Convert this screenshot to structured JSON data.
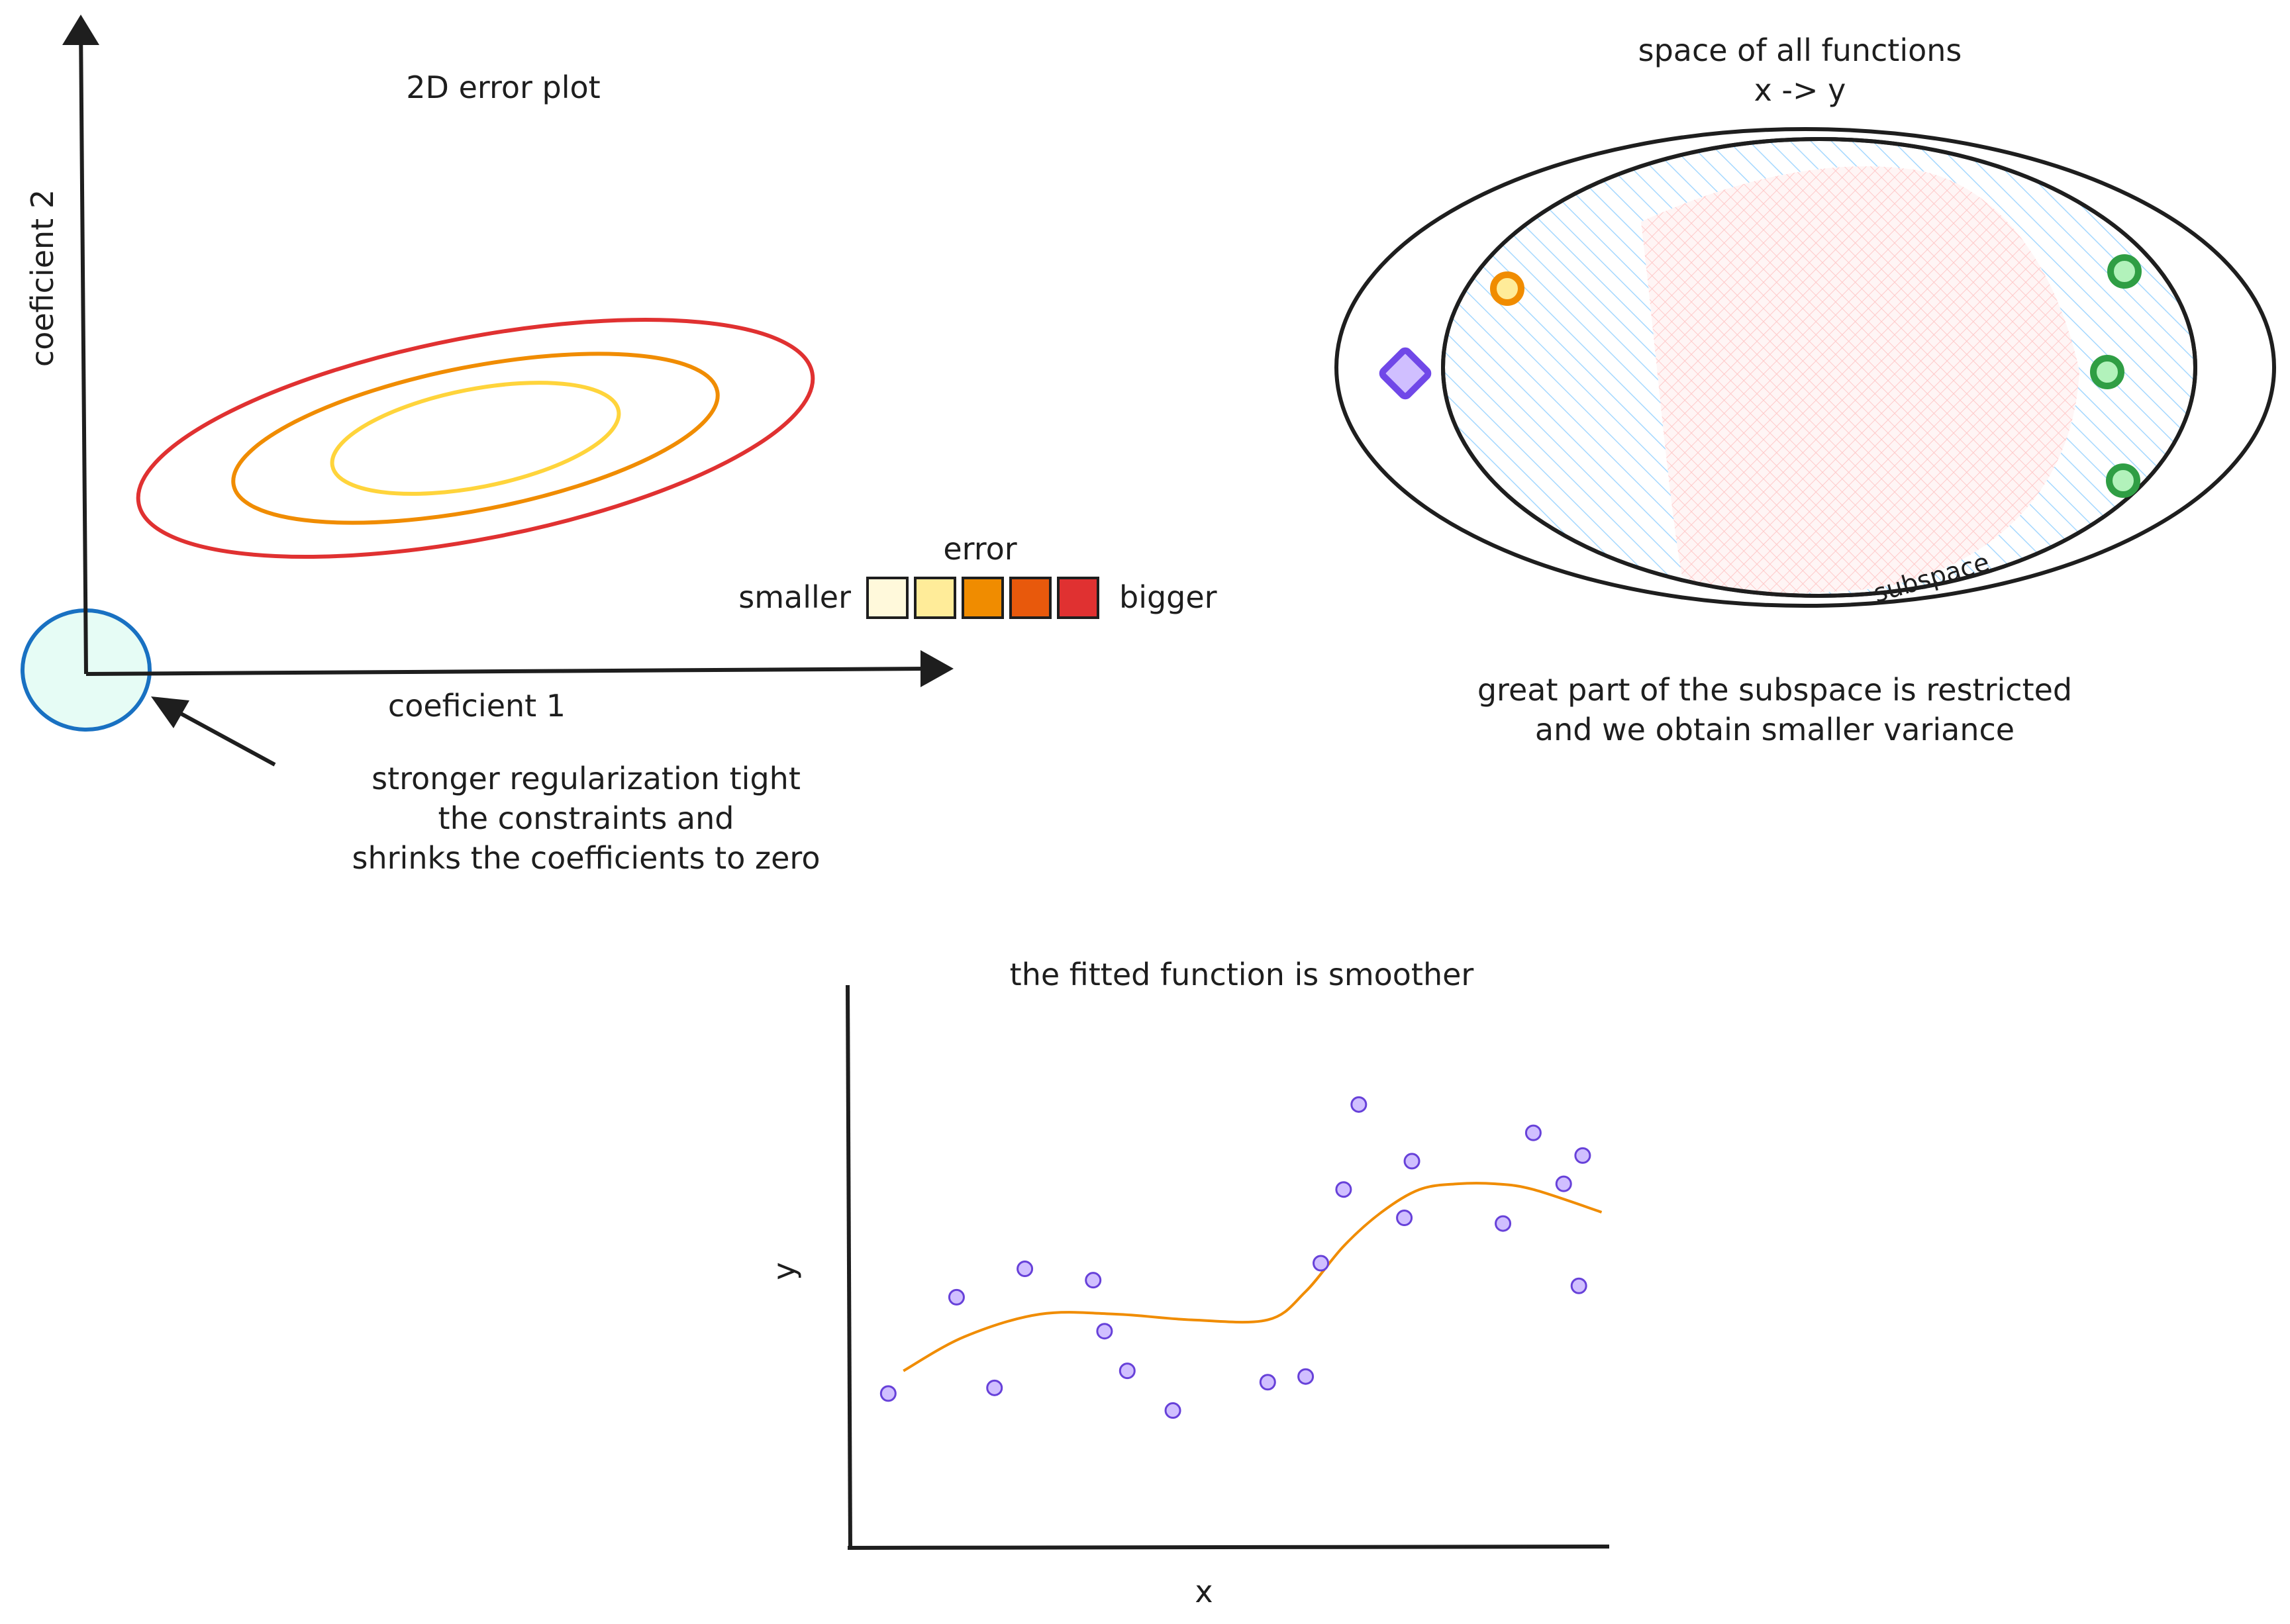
{
  "error_plot": {
    "title": "2D error plot",
    "x_axis_label": "coeficient 1",
    "y_axis_label": "coeficient 2",
    "legend": {
      "title": "error",
      "low_label": "smaller",
      "high_label": "bigger",
      "colors": [
        "#fff9db",
        "#ffec99",
        "#f08c00",
        "#e8590c",
        "#e03131"
      ]
    },
    "contour_colors": [
      "#ffd43b",
      "#f08c00",
      "#e03131"
    ],
    "constraint_region_color": "#e6fcf5",
    "constraint_region_stroke": "#1971c2",
    "annotation_lines": [
      "stronger regularization tight",
      "the constraints and",
      "shrinks the coefficients to zero"
    ]
  },
  "function_space": {
    "title_line1": "space of all functions",
    "title_line2": "x -> y",
    "subspace_label": "subspace",
    "caption_lines": [
      "great part of the subspace is restricted",
      "and we obtain smaller variance"
    ],
    "colors": {
      "subspace_hatch": "#a5d8ff",
      "restricted_hatch": "#ffc9c9",
      "orange_marker": "#f08c00",
      "purple_marker": "#7048e8",
      "green_marker": "#2f9e44"
    }
  },
  "fit_plot": {
    "title": "the fitted function is smoother",
    "x_label": "x",
    "y_label": "y",
    "chart_data": {
      "type": "scatter",
      "xlim": [
        0,
        10
      ],
      "ylim": [
        0,
        10
      ],
      "points": [
        [
          0.5,
          2.7
        ],
        [
          1.4,
          4.4
        ],
        [
          1.9,
          2.8
        ],
        [
          2.3,
          4.9
        ],
        [
          3.2,
          4.7
        ],
        [
          3.35,
          3.8
        ],
        [
          3.65,
          3.1
        ],
        [
          4.25,
          2.4
        ],
        [
          5.5,
          2.9
        ],
        [
          6.0,
          3.0
        ],
        [
          6.2,
          5.0
        ],
        [
          6.5,
          6.3
        ],
        [
          6.7,
          7.8
        ],
        [
          7.3,
          5.8
        ],
        [
          7.4,
          6.8
        ],
        [
          8.6,
          5.7
        ],
        [
          9.0,
          7.3
        ],
        [
          9.4,
          6.4
        ],
        [
          9.6,
          4.6
        ],
        [
          9.65,
          6.9
        ]
      ],
      "fit_curve": [
        [
          0.7,
          3.1
        ],
        [
          1.5,
          3.7
        ],
        [
          2.5,
          4.1
        ],
        [
          3.5,
          4.1
        ],
        [
          4.5,
          4.0
        ],
        [
          5.5,
          4.0
        ],
        [
          6.0,
          4.5
        ],
        [
          6.5,
          5.3
        ],
        [
          7.0,
          5.9
        ],
        [
          7.5,
          6.3
        ],
        [
          8.0,
          6.4
        ],
        [
          8.5,
          6.4
        ],
        [
          9.0,
          6.3
        ],
        [
          9.9,
          5.9
        ]
      ],
      "point_color": "#d0bfff",
      "point_stroke": "#6741d9",
      "curve_color": "#f08c00"
    }
  }
}
